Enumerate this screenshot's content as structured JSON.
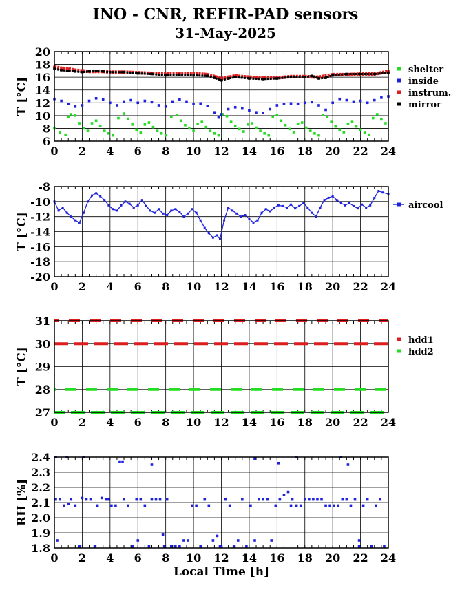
{
  "title": "INO - CNR, REFIR-PAD sensors",
  "subtitle": "31-May-2025",
  "chart_data": [
    {
      "type": "scatter",
      "ylabel": "T [°C]",
      "xlabel": "",
      "xlim": [
        0,
        24
      ],
      "ylim": [
        6,
        20
      ],
      "xticks": [
        0,
        2,
        4,
        6,
        8,
        10,
        12,
        14,
        16,
        18,
        20,
        22,
        24
      ],
      "yticks": [
        6,
        8,
        10,
        12,
        14,
        16,
        18,
        20
      ],
      "grid": true,
      "legend_position": "right",
      "series": [
        {
          "name": "shelter",
          "color": "#22dd22",
          "x": [
            0,
            0.4,
            0.8,
            1.0,
            1.2,
            1.5,
            1.8,
            2.1,
            2.4,
            2.7,
            3.0,
            3.3,
            3.6,
            3.9,
            4.2,
            4.6,
            5.0,
            5.3,
            5.6,
            5.9,
            6.2,
            6.5,
            6.8,
            7.1,
            7.4,
            7.7,
            8.0,
            8.4,
            8.8,
            9.1,
            9.4,
            9.7,
            10.0,
            10.3,
            10.6,
            10.9,
            11.2,
            11.5,
            11.8,
            12.1,
            12.4,
            12.7,
            13.0,
            13.3,
            13.6,
            13.9,
            14.2,
            14.5,
            14.8,
            15.1,
            15.4,
            15.7,
            16.0,
            16.3,
            16.6,
            16.9,
            17.2,
            17.5,
            17.8,
            18.1,
            18.4,
            18.7,
            19.0,
            19.3,
            19.6,
            19.9,
            20.2,
            20.5,
            20.8,
            21.1,
            21.4,
            21.7,
            22.0,
            22.3,
            22.6,
            22.9,
            23.2,
            23.5,
            23.8
          ],
          "y": [
            8.0,
            7.3,
            7.0,
            9.8,
            10.2,
            10.0,
            8.8,
            8.0,
            7.6,
            8.8,
            9.2,
            8.4,
            7.6,
            7.2,
            6.9,
            9.6,
            10.3,
            9.5,
            8.6,
            7.8,
            7.3,
            8.6,
            8.9,
            8.2,
            7.6,
            7.2,
            6.9,
            9.8,
            10.1,
            9.2,
            8.5,
            8.0,
            7.6,
            8.7,
            9.0,
            8.2,
            7.6,
            7.2,
            6.9,
            10.2,
            9.9,
            9.0,
            8.4,
            7.9,
            7.5,
            8.6,
            8.8,
            8.1,
            7.6,
            7.2,
            6.9,
            9.8,
            10.1,
            9.2,
            8.5,
            7.9,
            7.4,
            8.7,
            8.9,
            8.1,
            7.6,
            7.2,
            6.9,
            10.1,
            9.8,
            9.0,
            8.3,
            7.8,
            7.4,
            8.7,
            9.0,
            8.3,
            7.8,
            7.3,
            7.0,
            9.6,
            10.2,
            9.4,
            8.8
          ]
        },
        {
          "name": "inside",
          "color": "#1e22dd",
          "x": [
            0,
            0.5,
            1.0,
            1.5,
            2.0,
            2.5,
            3.0,
            3.5,
            4.0,
            4.5,
            5.0,
            5.5,
            6.0,
            6.5,
            7.0,
            7.5,
            8.0,
            8.5,
            9.0,
            9.5,
            10.0,
            10.5,
            11.0,
            11.5,
            11.8,
            12.0,
            12.5,
            13.0,
            13.5,
            14.0,
            14.5,
            15.0,
            15.5,
            16.0,
            16.5,
            17.0,
            17.5,
            18.0,
            18.5,
            19.0,
            19.5,
            20.0,
            20.5,
            21.0,
            21.5,
            22.0,
            22.5,
            23.0,
            23.5,
            24.0
          ],
          "y": [
            12.6,
            12.3,
            11.8,
            11.4,
            11.6,
            12.3,
            12.7,
            12.5,
            12.0,
            11.6,
            12.2,
            12.4,
            12.0,
            12.3,
            12.1,
            11.6,
            11.4,
            12.2,
            12.5,
            12.2,
            11.8,
            11.9,
            11.5,
            10.5,
            9.7,
            10.2,
            11.0,
            11.3,
            11.1,
            10.8,
            10.5,
            10.4,
            11.0,
            11.6,
            11.8,
            11.9,
            11.8,
            12.0,
            12.1,
            11.6,
            10.9,
            12.0,
            12.6,
            12.4,
            12.2,
            12.3,
            12.0,
            12.4,
            12.8,
            13.0
          ]
        },
        {
          "name": "instrum.",
          "color": "#dd1e1e",
          "x": [
            0,
            0.5,
            1.0,
            1.5,
            2.0,
            2.5,
            3.0,
            3.5,
            4.0,
            5.0,
            6.0,
            7.0,
            8.0,
            9.0,
            10.0,
            11.0,
            11.5,
            12.0,
            12.5,
            13.0,
            14.0,
            15.0,
            16.0,
            17.0,
            18.0,
            19.0,
            20.0,
            21.0,
            22.0,
            23.0,
            24.0
          ],
          "y": [
            17.6,
            17.4,
            17.3,
            17.1,
            17.0,
            16.9,
            16.9,
            16.9,
            16.8,
            16.8,
            16.7,
            16.6,
            16.5,
            16.6,
            16.6,
            16.4,
            16.1,
            15.8,
            16.0,
            16.2,
            16.0,
            15.9,
            15.9,
            16.1,
            16.1,
            16.0,
            16.4,
            16.4,
            16.5,
            16.5,
            16.9
          ]
        },
        {
          "name": "mirror",
          "color": "#000000",
          "x": [
            0,
            0.5,
            1.0,
            1.5,
            2.0,
            2.5,
            3.0,
            3.5,
            4.0,
            5.0,
            6.0,
            7.0,
            8.0,
            9.0,
            10.0,
            11.0,
            11.5,
            12.0,
            12.5,
            13.0,
            14.0,
            15.0,
            16.0,
            17.0,
            18.0,
            18.5,
            19.0,
            19.5,
            20.0,
            21.0,
            22.0,
            23.0,
            24.0
          ],
          "y": [
            17.3,
            17.1,
            17.0,
            16.9,
            16.8,
            16.9,
            17.0,
            16.9,
            16.8,
            16.8,
            16.6,
            16.5,
            16.3,
            16.4,
            16.3,
            16.2,
            15.9,
            15.5,
            15.8,
            16.0,
            15.8,
            15.7,
            15.8,
            16.0,
            16.0,
            16.2,
            15.8,
            15.9,
            16.3,
            16.5,
            16.5,
            16.5,
            16.7
          ]
        }
      ]
    },
    {
      "type": "line",
      "ylabel": "T [°C]",
      "xlabel": "",
      "xlim": [
        0,
        24
      ],
      "ylim": [
        -20,
        -8
      ],
      "xticks": [
        0,
        2,
        4,
        6,
        8,
        10,
        12,
        14,
        16,
        18,
        20,
        22,
        24
      ],
      "yticks": [
        -20,
        -18,
        -16,
        -14,
        -12,
        -10,
        -8
      ],
      "grid": true,
      "legend_position": "right",
      "series": [
        {
          "name": "aircool",
          "color": "#1e22dd",
          "x": [
            0,
            0.3,
            0.6,
            0.9,
            1.2,
            1.5,
            1.8,
            2.1,
            2.4,
            2.7,
            3.0,
            3.3,
            3.6,
            3.9,
            4.2,
            4.5,
            4.8,
            5.1,
            5.4,
            5.7,
            6.0,
            6.3,
            6.6,
            6.9,
            7.2,
            7.5,
            7.8,
            8.1,
            8.4,
            8.7,
            9.0,
            9.3,
            9.6,
            9.9,
            10.2,
            10.5,
            10.8,
            11.1,
            11.4,
            11.7,
            11.9,
            12.2,
            12.5,
            12.8,
            13.1,
            13.4,
            13.7,
            14.0,
            14.3,
            14.6,
            14.9,
            15.2,
            15.5,
            15.8,
            16.1,
            16.4,
            16.7,
            17.0,
            17.3,
            17.6,
            17.9,
            18.2,
            18.5,
            18.8,
            19.1,
            19.4,
            19.7,
            20.0,
            20.3,
            20.6,
            20.9,
            21.2,
            21.5,
            21.8,
            22.1,
            22.4,
            22.7,
            23.0,
            23.3,
            23.6,
            24.0
          ],
          "y": [
            -10.0,
            -11.2,
            -10.8,
            -11.5,
            -12.0,
            -12.5,
            -12.8,
            -11.5,
            -10.0,
            -9.2,
            -8.9,
            -9.3,
            -9.8,
            -10.5,
            -11.0,
            -11.2,
            -10.5,
            -10.0,
            -10.3,
            -10.8,
            -10.5,
            -9.8,
            -10.6,
            -11.2,
            -11.5,
            -11.0,
            -11.6,
            -11.8,
            -11.2,
            -11.0,
            -11.4,
            -12.0,
            -11.6,
            -11.0,
            -11.5,
            -12.5,
            -13.5,
            -14.2,
            -14.8,
            -14.5,
            -15.0,
            -12.5,
            -10.8,
            -11.2,
            -11.6,
            -12.0,
            -11.8,
            -12.3,
            -12.8,
            -12.5,
            -11.5,
            -11.0,
            -11.3,
            -10.8,
            -10.5,
            -10.6,
            -10.8,
            -10.4,
            -10.9,
            -10.6,
            -10.2,
            -10.8,
            -11.5,
            -12.0,
            -10.8,
            -9.8,
            -9.5,
            -9.3,
            -9.8,
            -10.2,
            -10.5,
            -10.2,
            -10.6,
            -10.9,
            -10.4,
            -10.8,
            -10.5,
            -9.5,
            -8.6,
            -8.8,
            -9.0
          ]
        }
      ]
    },
    {
      "type": "scatter",
      "ylabel": "T [°C]",
      "xlabel": "",
      "xlim": [
        0,
        24
      ],
      "ylim": [
        27,
        31
      ],
      "xticks": [
        0,
        2,
        4,
        6,
        8,
        10,
        12,
        14,
        16,
        18,
        20,
        22,
        24
      ],
      "yticks": [
        27,
        28,
        29,
        30,
        31
      ],
      "grid": true,
      "legend_position": "right",
      "series": [
        {
          "name": "hdd1",
          "color": "#dd1e1e",
          "y_levels": [
            30,
            31
          ]
        },
        {
          "name": "hdd2",
          "color": "#22dd22",
          "y_levels": [
            27,
            28
          ]
        }
      ]
    },
    {
      "type": "scatter",
      "ylabel": "RH [%]",
      "xlabel": "Local Time [h]",
      "xlim": [
        0,
        24
      ],
      "ylim": [
        1.8,
        2.4
      ],
      "xticks": [
        0,
        2,
        4,
        6,
        8,
        10,
        12,
        14,
        16,
        18,
        20,
        22,
        24
      ],
      "yticks": [
        1.8,
        1.9,
        2.0,
        2.1,
        2.2,
        2.3,
        2.4
      ],
      "grid": true,
      "series": [
        {
          "name": "",
          "color": "#1e22dd",
          "x": [
            0.1,
            0.4,
            0.7,
            1.0,
            1.2,
            1.5,
            1.8,
            2.0,
            2.3,
            2.6,
            2.9,
            3.1,
            3.4,
            3.7,
            3.9,
            4.1,
            4.4,
            4.7,
            5.0,
            5.3,
            5.6,
            5.9,
            6.2,
            6.5,
            6.8,
            7.0,
            7.3,
            7.6,
            7.9,
            8.1,
            8.4,
            8.7,
            9.0,
            9.3,
            9.6,
            9.9,
            10.2,
            10.5,
            10.8,
            11.1,
            11.4,
            11.7,
            12.0,
            12.3,
            12.6,
            12.9,
            13.2,
            13.5,
            13.8,
            14.1,
            14.4,
            14.7,
            15.0,
            15.3,
            15.6,
            15.9,
            16.2,
            16.5,
            16.8,
            17.1,
            17.4,
            17.7,
            18.0,
            18.3,
            18.6,
            18.9,
            19.2,
            19.5,
            19.8,
            20.1,
            20.4,
            20.7,
            21.0,
            21.3,
            21.6,
            21.9,
            22.2,
            22.5,
            22.8,
            23.1,
            23.4,
            23.7,
            0.1,
            0.9,
            2.1,
            4.9,
            7.0,
            14.4,
            16.1,
            17.4,
            20.6,
            21.1,
            0.2,
            6.0,
            7.8,
            11.9,
            17.0,
            21.9
          ],
          "y": [
            2.12,
            2.12,
            2.08,
            2.09,
            2.12,
            2.08,
            1.81,
            2.13,
            2.12,
            2.12,
            1.81,
            2.08,
            2.13,
            2.12,
            2.12,
            2.08,
            2.08,
            2.37,
            2.12,
            2.08,
            1.81,
            2.12,
            2.12,
            2.08,
            1.81,
            2.12,
            2.12,
            2.12,
            1.81,
            2.12,
            1.81,
            1.81,
            1.81,
            1.85,
            1.85,
            2.08,
            2.08,
            1.81,
            2.12,
            2.08,
            1.85,
            1.88,
            1.81,
            2.12,
            2.08,
            1.81,
            1.85,
            2.12,
            1.81,
            2.08,
            1.85,
            2.12,
            2.12,
            2.12,
            1.85,
            2.08,
            2.12,
            2.15,
            2.17,
            2.12,
            2.08,
            2.08,
            2.12,
            2.12,
            2.12,
            2.12,
            2.12,
            2.08,
            2.08,
            2.08,
            2.08,
            2.12,
            2.12,
            2.08,
            2.12,
            1.85,
            2.08,
            2.12,
            1.81,
            2.08,
            2.12,
            1.81,
            2.4,
            2.4,
            2.4,
            2.37,
            2.35,
            2.39,
            2.36,
            2.4,
            2.4,
            2.35,
            1.85,
            1.85,
            1.89,
            1.81,
            2.08,
            1.81
          ]
        }
      ]
    }
  ]
}
